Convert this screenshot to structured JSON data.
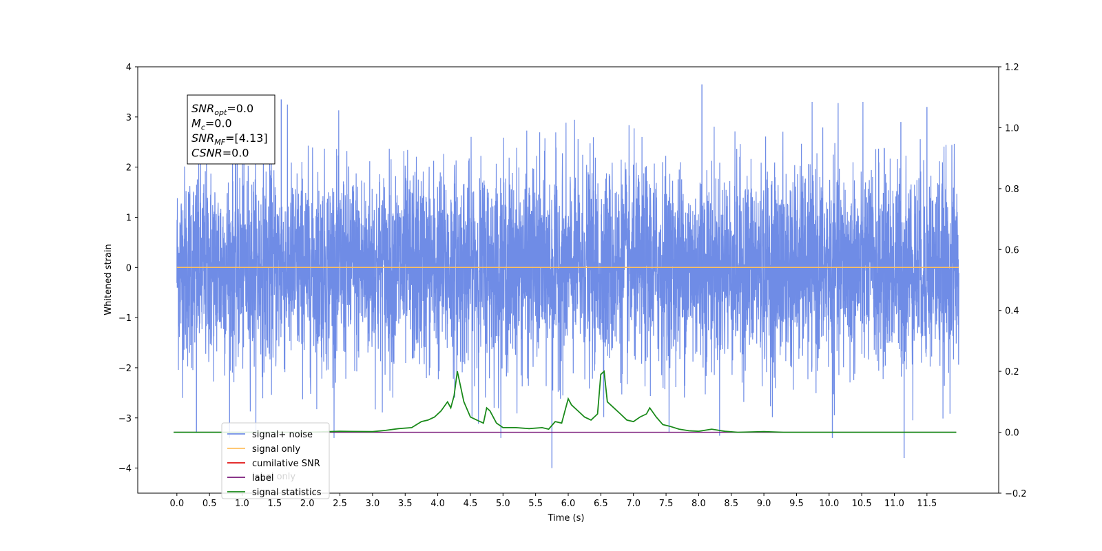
{
  "chart_data": {
    "type": "line",
    "xlabel": "Time (s)",
    "ylabel": "Whitened strain",
    "xlim": [
      -0.6,
      12.6
    ],
    "ylim_left": [
      -4.5,
      4.0
    ],
    "ylim_right": [
      -0.2,
      1.2
    ],
    "x_ticks": [
      "0.0",
      "0.5",
      "1.0",
      "1.5",
      "2.0",
      "2.5",
      "3.0",
      "3.5",
      "4.0",
      "4.5",
      "5.0",
      "5.5",
      "6.0",
      "6.5",
      "7.0",
      "7.5",
      "8.0",
      "8.5",
      "9.0",
      "9.5",
      "10.0",
      "10.5",
      "11.0",
      "11.5"
    ],
    "y_ticks_left": [
      "4",
      "3",
      "2",
      "1",
      "0",
      "−1",
      "−2",
      "−3",
      "−4"
    ],
    "y_ticks_right": [
      "1.2",
      "1.0",
      "0.8",
      "0.6",
      "0.4",
      "0.2",
      "0.0",
      "−0.2"
    ],
    "annotation": {
      "lines": [
        {
          "main": "SNR",
          "sub": "opt",
          "rest": "=0.0"
        },
        {
          "main": "M",
          "sub": "c",
          "rest": "=0.0"
        },
        {
          "main": "SNR",
          "sub": "MF",
          "rest": "=[4.13]"
        },
        {
          "main": "CSNR",
          "sub": "",
          "rest": "=0.0"
        }
      ]
    },
    "legend": {
      "placement": "lower-left",
      "entries": [
        {
          "label": "signal+ noise",
          "color": "#6f8ce6"
        },
        {
          "label": "signal only",
          "color": "#ffc060"
        },
        {
          "label": "cumilative SNR",
          "color": "#e01010"
        },
        {
          "label": "label",
          "color": "#7a1a7a"
        },
        {
          "label": "signal statistics",
          "color": "#1a8a1a"
        }
      ],
      "obscured_text": "label only"
    },
    "series": [
      {
        "name": "signal+ noise",
        "axis": "left",
        "color": "#6f8ce6",
        "description": "noise",
        "x_range": [
          0.0,
          11.99
        ],
        "typical_amplitude": 1.6,
        "notable_extremes": [
          {
            "x": 0.3,
            "y": -3.3
          },
          {
            "x": 1.6,
            "y": 3.35
          },
          {
            "x": 5.75,
            "y": -4.0
          },
          {
            "x": 8.05,
            "y": 3.65
          },
          {
            "x": 10.05,
            "y": -3.4
          },
          {
            "x": 11.15,
            "y": -3.8
          },
          {
            "x": 11.1,
            "y": 2.9
          },
          {
            "x": 11.5,
            "y": 3.2
          }
        ]
      },
      {
        "name": "signal only",
        "axis": "left",
        "color": "#ffc060",
        "x": [
          0.0,
          11.99
        ],
        "y": [
          0.0,
          0.0
        ]
      },
      {
        "name": "label",
        "axis": "right",
        "color": "#7a1a7a",
        "x": [
          -0.05,
          11.95
        ],
        "y": [
          0.0,
          0.0
        ]
      },
      {
        "name": "signal statistics",
        "axis": "right",
        "color": "#1a8a1a",
        "x": [
          -0.05,
          2.0,
          2.5,
          3.0,
          3.2,
          3.4,
          3.6,
          3.75,
          3.85,
          3.95,
          4.05,
          4.15,
          4.2,
          4.25,
          4.3,
          4.4,
          4.5,
          4.6,
          4.7,
          4.75,
          4.8,
          4.9,
          5.0,
          5.2,
          5.4,
          5.6,
          5.7,
          5.8,
          5.9,
          6.0,
          6.05,
          6.15,
          6.25,
          6.35,
          6.45,
          6.5,
          6.55,
          6.6,
          6.7,
          6.8,
          6.9,
          7.0,
          7.1,
          7.2,
          7.25,
          7.35,
          7.45,
          7.55,
          7.7,
          7.85,
          8.0,
          8.2,
          8.4,
          8.6,
          9.0,
          9.3,
          9.6,
          11.95
        ],
        "y": [
          0.0,
          0.0,
          0.003,
          0.002,
          0.006,
          0.012,
          0.015,
          0.035,
          0.04,
          0.05,
          0.07,
          0.1,
          0.08,
          0.12,
          0.2,
          0.1,
          0.05,
          0.04,
          0.03,
          0.08,
          0.07,
          0.03,
          0.015,
          0.015,
          0.012,
          0.015,
          0.01,
          0.035,
          0.03,
          0.11,
          0.09,
          0.07,
          0.05,
          0.04,
          0.06,
          0.19,
          0.2,
          0.1,
          0.08,
          0.06,
          0.04,
          0.035,
          0.05,
          0.06,
          0.08,
          0.05,
          0.025,
          0.02,
          0.01,
          0.005,
          0.003,
          0.01,
          0.003,
          0.0,
          0.002,
          0.0,
          0.0,
          0.0
        ]
      }
    ]
  }
}
